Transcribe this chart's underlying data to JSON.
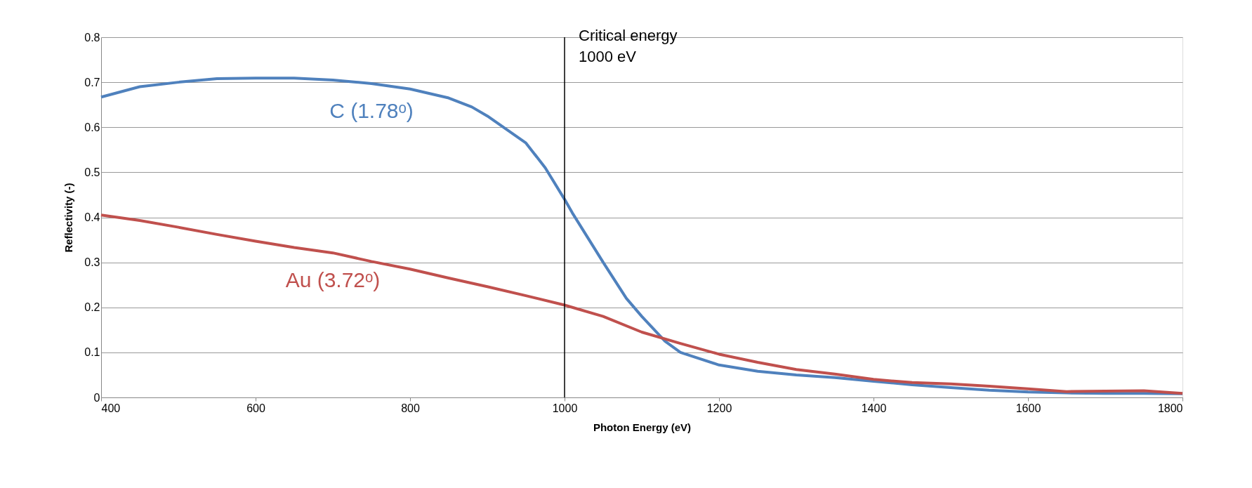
{
  "chart_data": {
    "type": "line",
    "xlabel": "Photon Energy (eV)",
    "ylabel": "Reflectivity (-)",
    "x": [
      400,
      450,
      500,
      550,
      600,
      650,
      700,
      750,
      800,
      850,
      880,
      900,
      950,
      975,
      1000,
      1010,
      1050,
      1080,
      1100,
      1130,
      1150,
      1200,
      1250,
      1300,
      1350,
      1400,
      1450,
      1500,
      1550,
      1600,
      1650,
      1700,
      1750,
      1800
    ],
    "series": [
      {
        "name": "C (1.78ᵒ)",
        "color": "#4f81bd",
        "values": [
          0.667,
          0.69,
          0.7,
          0.708,
          0.709,
          0.709,
          0.705,
          0.697,
          0.685,
          0.665,
          0.645,
          0.625,
          0.565,
          0.51,
          0.44,
          0.41,
          0.3,
          0.22,
          0.18,
          0.125,
          0.1,
          0.072,
          0.058,
          0.05,
          0.044,
          0.036,
          0.028,
          0.022,
          0.016,
          0.012,
          0.01,
          0.009,
          0.009,
          0.008
        ]
      },
      {
        "name": "Au (3.72ᵒ)",
        "color": "#c0504d",
        "x": [
          400,
          450,
          500,
          550,
          600,
          650,
          700,
          750,
          800,
          850,
          900,
          950,
          1000,
          1050,
          1100,
          1150,
          1200,
          1250,
          1300,
          1350,
          1400,
          1450,
          1500,
          1550,
          1600,
          1650,
          1700,
          1750,
          1800
        ],
        "values": [
          0.405,
          0.393,
          0.378,
          0.362,
          0.347,
          0.333,
          0.321,
          0.302,
          0.285,
          0.265,
          0.246,
          0.226,
          0.205,
          0.18,
          0.145,
          0.12,
          0.096,
          0.078,
          0.062,
          0.052,
          0.04,
          0.033,
          0.03,
          0.025,
          0.019,
          0.013,
          0.014,
          0.015,
          0.009
        ]
      }
    ],
    "xlim": [
      400,
      1800
    ],
    "xticks": [
      400,
      600,
      800,
      1000,
      1200,
      1400,
      1600,
      1800
    ],
    "ylim": [
      0,
      0.8
    ],
    "yticks": [
      0,
      0.1,
      0.2,
      0.3,
      0.4,
      0.5,
      0.6,
      0.7,
      0.8
    ],
    "grid": "y",
    "marker": "none",
    "line_style": "solid",
    "ref_lines": [
      {
        "axis": "x",
        "value": 1000,
        "label": "Critical energy\n1000 eV",
        "color": "#000000"
      }
    ]
  }
}
